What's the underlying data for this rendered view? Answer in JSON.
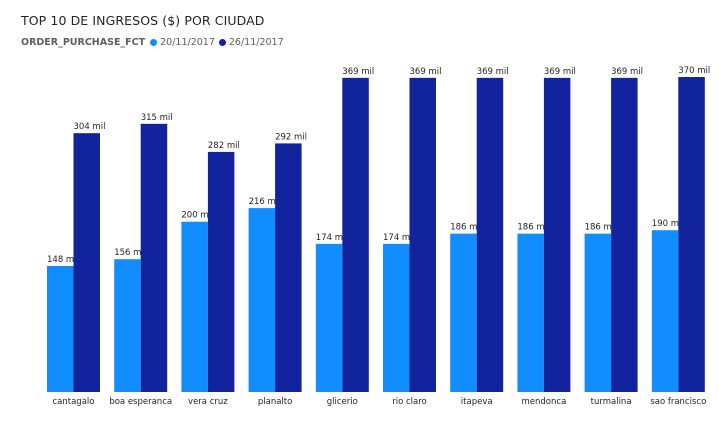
{
  "chart_data": {
    "type": "bar",
    "title": "TOP 10 DE INGRESOS ($) POR CIUDAD",
    "legend_title": "ORDER_PURCHASE_FCT",
    "legend_position": "top-left",
    "categories": [
      "cantagalo",
      "boa esperanca",
      "vera cruz",
      "planalto",
      "glicerio",
      "rio claro",
      "itapeva",
      "mendonca",
      "turmalina",
      "sao francisco"
    ],
    "series": [
      {
        "name": "20/11/2017",
        "color": "#118dff",
        "values": [
          148,
          156,
          200,
          216,
          174,
          174,
          186,
          186,
          186,
          190
        ],
        "labels": [
          "148 mil",
          "156 mil",
          "200 mil",
          "216 mil",
          "174 mil",
          "174 mil",
          "186 mil",
          "186 mil",
          "186 mil",
          "190 mil"
        ]
      },
      {
        "name": "26/11/2017",
        "color": "#12239e",
        "values": [
          304,
          315,
          282,
          292,
          369,
          369,
          369,
          369,
          369,
          370
        ],
        "labels": [
          "304 mil",
          "315 mil",
          "282 mil",
          "292 mil",
          "369 mil",
          "369 mil",
          "369 mil",
          "369 mil",
          "369 mil",
          "370 mil"
        ]
      }
    ],
    "ylim": [
      0,
      370
    ],
    "grid": false
  }
}
